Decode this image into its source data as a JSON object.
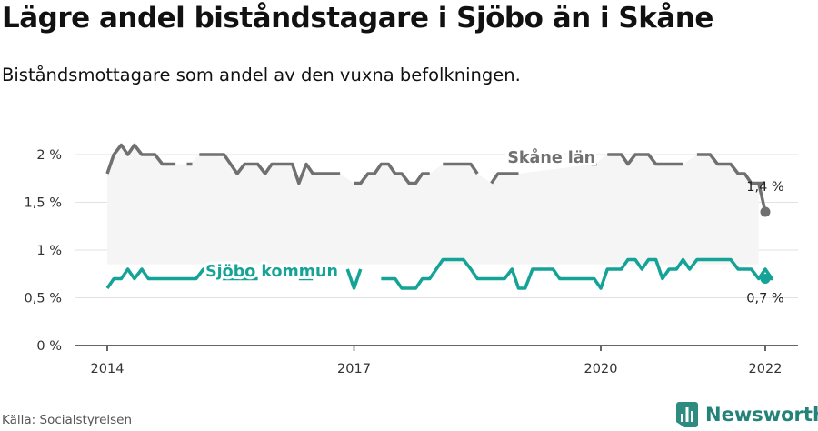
{
  "page": {
    "title": "Lägre andel biståndstagare i Sjöbo än i Skåne",
    "subtitle": "Biståndsmottagare som andel av den vuxna befolkningen.",
    "source": "Källa: Socialstyrelsen",
    "brand": "Newsworthy",
    "brand_icon": "bar-chart-logo-icon"
  },
  "chart_data": {
    "type": "line",
    "x_ticks": [
      "2014",
      "2017",
      "2020",
      "2022"
    ],
    "y_ticks": [
      "0 %",
      "0,5 %",
      "1 %",
      "1,5 %",
      "2 %"
    ],
    "ylim": [
      0,
      2.0
    ],
    "grid": true,
    "series": [
      {
        "name": "Skåne län",
        "color": "#707070",
        "end_label": "1,4 %",
        "points": [
          [
            2014.0,
            1.8
          ],
          [
            2014.08,
            2.0
          ],
          [
            2014.17,
            2.1
          ],
          [
            2014.25,
            2.0
          ],
          [
            2014.33,
            2.1
          ],
          [
            2014.42,
            2.0
          ],
          [
            2014.5,
            2.0
          ],
          [
            2014.58,
            2.0
          ],
          [
            2014.67,
            1.9
          ],
          [
            2014.75,
            1.9
          ],
          [
            2014.83,
            1.9
          ],
          [
            2014.92,
            null
          ],
          [
            2015.0,
            1.9
          ],
          [
            2015.08,
            null
          ],
          [
            2015.12,
            2.0
          ],
          [
            2015.25,
            2.0
          ],
          [
            2015.33,
            2.0
          ],
          [
            2015.42,
            2.0
          ],
          [
            2015.5,
            1.9
          ],
          [
            2015.58,
            1.8
          ],
          [
            2015.67,
            1.9
          ],
          [
            2015.75,
            1.9
          ],
          [
            2015.83,
            1.9
          ],
          [
            2015.92,
            1.8
          ],
          [
            2016.0,
            1.9
          ],
          [
            2016.08,
            1.9
          ],
          [
            2016.17,
            1.9
          ],
          [
            2016.25,
            1.9
          ],
          [
            2016.33,
            1.7
          ],
          [
            2016.42,
            1.9
          ],
          [
            2016.5,
            1.8
          ],
          [
            2016.58,
            1.8
          ],
          [
            2016.67,
            1.8
          ],
          [
            2016.75,
            1.8
          ],
          [
            2016.83,
            1.8
          ],
          [
            2016.92,
            null
          ],
          [
            2017.0,
            1.7
          ],
          [
            2017.08,
            1.7
          ],
          [
            2017.17,
            1.8
          ],
          [
            2017.25,
            1.8
          ],
          [
            2017.33,
            1.9
          ],
          [
            2017.42,
            1.9
          ],
          [
            2017.5,
            1.8
          ],
          [
            2017.58,
            1.8
          ],
          [
            2017.67,
            1.7
          ],
          [
            2017.75,
            1.7
          ],
          [
            2017.83,
            1.8
          ],
          [
            2017.92,
            1.8
          ],
          [
            2018.0,
            null
          ],
          [
            2018.08,
            1.9
          ],
          [
            2018.17,
            1.9
          ],
          [
            2018.25,
            1.9
          ],
          [
            2018.33,
            1.9
          ],
          [
            2018.42,
            1.9
          ],
          [
            2018.5,
            1.8
          ],
          [
            2018.58,
            null
          ],
          [
            2018.67,
            1.7
          ],
          [
            2018.75,
            1.8
          ],
          [
            2018.83,
            1.8
          ],
          [
            2018.92,
            1.8
          ],
          [
            2019.0,
            1.8
          ],
          [
            2019.08,
            null
          ],
          [
            2019.92,
            1.9
          ],
          [
            2020.0,
            null
          ],
          [
            2020.08,
            2.0
          ],
          [
            2020.17,
            2.0
          ],
          [
            2020.25,
            2.0
          ],
          [
            2020.33,
            1.9
          ],
          [
            2020.42,
            2.0
          ],
          [
            2020.5,
            2.0
          ],
          [
            2020.58,
            2.0
          ],
          [
            2020.67,
            1.9
          ],
          [
            2020.75,
            1.9
          ],
          [
            2020.83,
            1.9
          ],
          [
            2020.92,
            1.9
          ],
          [
            2021.0,
            1.9
          ],
          [
            2021.08,
            null
          ],
          [
            2021.17,
            2.0
          ],
          [
            2021.25,
            2.0
          ],
          [
            2021.33,
            2.0
          ],
          [
            2021.42,
            1.9
          ],
          [
            2021.5,
            1.9
          ],
          [
            2021.58,
            1.9
          ],
          [
            2021.67,
            1.8
          ],
          [
            2021.75,
            1.8
          ],
          [
            2021.83,
            1.7
          ],
          [
            2021.92,
            1.7
          ],
          [
            2022.0,
            1.7
          ],
          [
            2022.08,
            null
          ],
          [
            2021.92,
            1.7
          ],
          [
            2022.0,
            1.4
          ]
        ]
      },
      {
        "name": "Sjöbo kommun",
        "color": "#14a396",
        "end_label": "0,7 %",
        "points": [
          [
            2014.0,
            0.6
          ],
          [
            2014.08,
            0.7
          ],
          [
            2014.17,
            0.7
          ],
          [
            2014.25,
            0.8
          ],
          [
            2014.33,
            0.7
          ],
          [
            2014.42,
            0.8
          ],
          [
            2014.5,
            0.7
          ],
          [
            2014.58,
            0.7
          ],
          [
            2014.67,
            0.7
          ],
          [
            2014.75,
            0.7
          ],
          [
            2014.83,
            0.7
          ],
          [
            2014.92,
            0.7
          ],
          [
            2015.0,
            0.7
          ],
          [
            2015.08,
            0.7
          ],
          [
            2015.17,
            0.8
          ],
          [
            2015.25,
            0.8
          ],
          [
            2015.33,
            0.7
          ],
          [
            2015.42,
            0.7
          ],
          [
            2015.5,
            0.7
          ],
          [
            2015.58,
            0.7
          ],
          [
            2015.67,
            0.7
          ],
          [
            2015.75,
            0.7
          ],
          [
            2015.83,
            0.7
          ],
          [
            2015.92,
            null
          ],
          [
            2016.33,
            0.7
          ],
          [
            2016.42,
            0.7
          ],
          [
            2016.5,
            0.7
          ],
          [
            2016.58,
            null
          ],
          [
            2016.92,
            0.8
          ],
          [
            2017.0,
            0.6
          ],
          [
            2017.08,
            0.8
          ],
          [
            2017.17,
            null
          ],
          [
            2017.33,
            0.7
          ],
          [
            2017.42,
            0.7
          ],
          [
            2017.5,
            0.7
          ],
          [
            2017.58,
            0.6
          ],
          [
            2017.67,
            0.6
          ],
          [
            2017.75,
            0.6
          ],
          [
            2017.83,
            0.7
          ],
          [
            2017.92,
            0.7
          ],
          [
            2018.0,
            0.8
          ],
          [
            2018.08,
            0.9
          ],
          [
            2018.17,
            0.9
          ],
          [
            2018.25,
            0.9
          ],
          [
            2018.33,
            0.9
          ],
          [
            2018.42,
            0.8
          ],
          [
            2018.5,
            0.7
          ],
          [
            2018.58,
            0.7
          ],
          [
            2018.67,
            0.7
          ],
          [
            2018.75,
            0.7
          ],
          [
            2018.83,
            0.7
          ],
          [
            2018.92,
            0.8
          ],
          [
            2019.0,
            0.6
          ],
          [
            2019.08,
            0.6
          ],
          [
            2019.17,
            0.8
          ],
          [
            2019.25,
            0.8
          ],
          [
            2019.33,
            0.8
          ],
          [
            2019.42,
            0.8
          ],
          [
            2019.5,
            0.7
          ],
          [
            2019.58,
            0.7
          ],
          [
            2019.67,
            0.7
          ],
          [
            2019.75,
            0.7
          ],
          [
            2019.83,
            0.7
          ],
          [
            2019.92,
            0.7
          ],
          [
            2020.0,
            0.6
          ],
          [
            2020.08,
            0.8
          ],
          [
            2020.17,
            0.8
          ],
          [
            2020.25,
            0.8
          ],
          [
            2020.33,
            0.9
          ],
          [
            2020.42,
            0.9
          ],
          [
            2020.5,
            0.8
          ],
          [
            2020.58,
            0.9
          ],
          [
            2020.67,
            0.9
          ],
          [
            2020.75,
            0.7
          ],
          [
            2020.83,
            0.8
          ],
          [
            2020.92,
            0.8
          ],
          [
            2021.0,
            0.9
          ],
          [
            2021.08,
            0.8
          ],
          [
            2021.17,
            0.9
          ],
          [
            2021.25,
            0.9
          ],
          [
            2021.33,
            0.9
          ],
          [
            2021.42,
            0.9
          ],
          [
            2021.5,
            0.9
          ],
          [
            2021.58,
            0.9
          ],
          [
            2021.67,
            0.8
          ],
          [
            2021.75,
            0.8
          ],
          [
            2021.83,
            0.8
          ],
          [
            2021.92,
            0.7
          ],
          [
            2022.0,
            0.8
          ],
          [
            2022.08,
            0.7
          ],
          [
            2022.0,
            0.7
          ]
        ]
      }
    ]
  }
}
